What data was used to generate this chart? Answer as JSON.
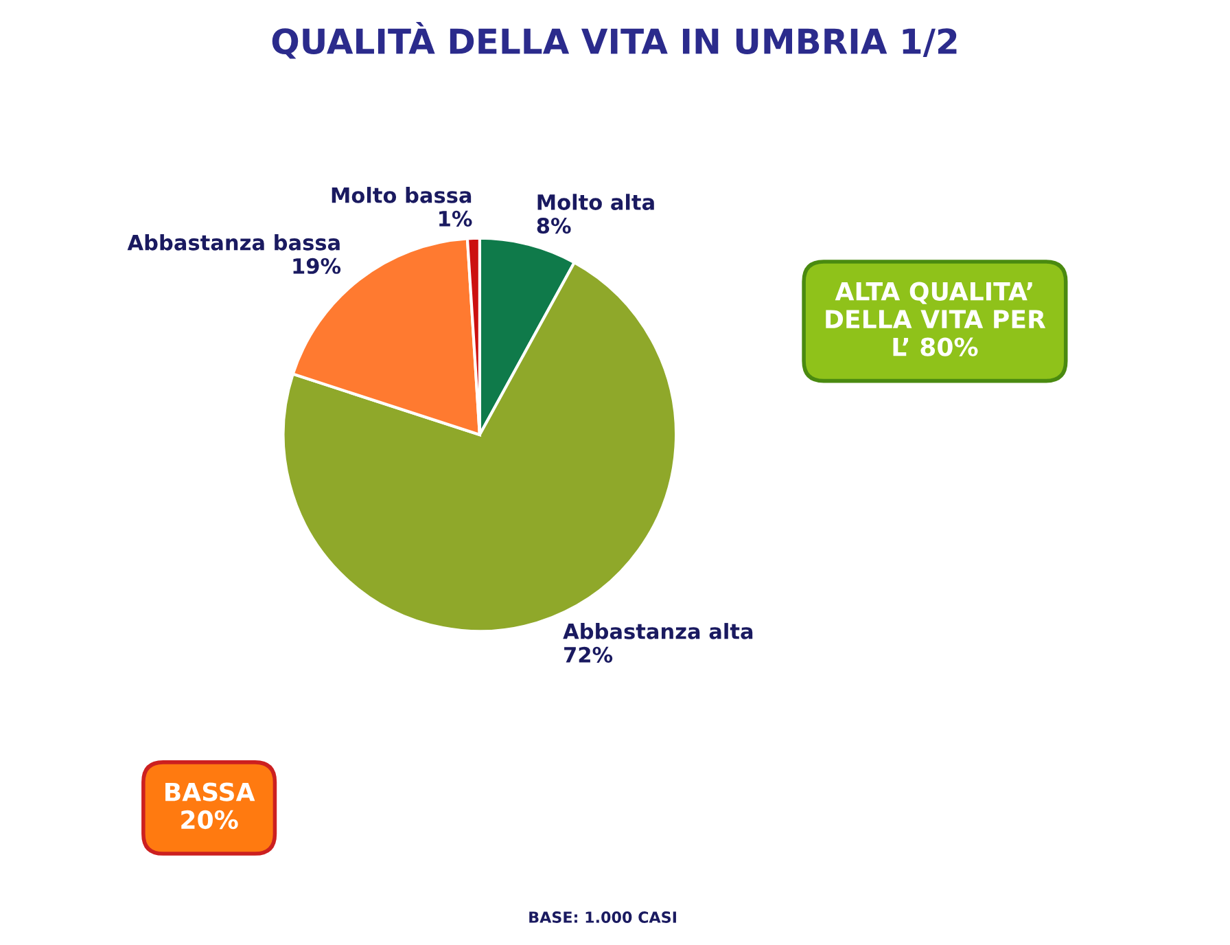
{
  "chart_data": {
    "type": "pie",
    "title": "QUALITÀ DELLA VITA IN UMBRIA 1/2",
    "categories": [
      "Molto alta",
      "Abbastanza alta",
      "Abbastanza bassa",
      "Molto bassa"
    ],
    "values": [
      8,
      72,
      19,
      1
    ],
    "value_labels": [
      "8%",
      "72%",
      "19%",
      "1%"
    ],
    "colors": [
      "#0f7a4a",
      "#8fa82a",
      "#ff7a30",
      "#cc1010"
    ],
    "annotations": [
      "ALTA QUALITA’ DELLA VITA PER L’ 80%",
      "BASSA 20%",
      "BASE: 1.000 CASI"
    ]
  }
}
